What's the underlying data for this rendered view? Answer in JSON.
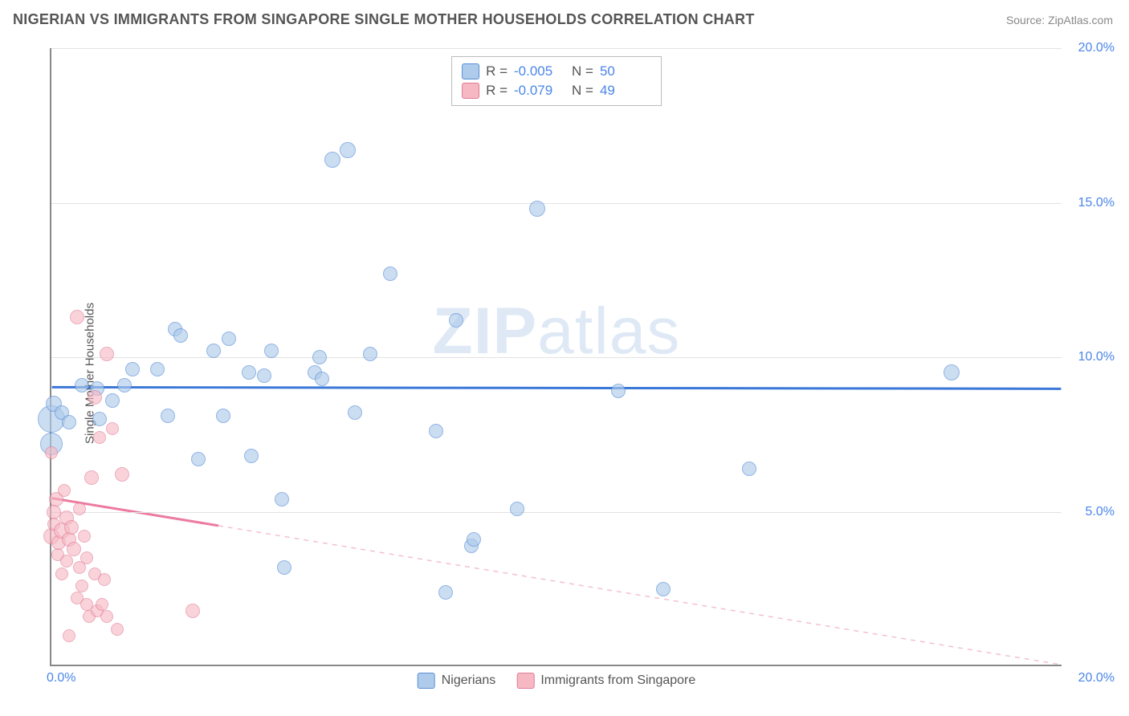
{
  "header": {
    "title": "NIGERIAN VS IMMIGRANTS FROM SINGAPORE SINGLE MOTHER HOUSEHOLDS CORRELATION CHART",
    "source": "Source: ZipAtlas.com"
  },
  "chart": {
    "type": "scatter",
    "ylabel": "Single Mother Households",
    "watermark": "ZIPatlas",
    "background_color": "#ffffff",
    "grid_color": "#e2e2e2",
    "axis_color": "#888888",
    "tick_label_color": "#4a86e8",
    "xlim": [
      0,
      20
    ],
    "ylim": [
      0,
      20
    ],
    "yticks": [
      5,
      10,
      15,
      20
    ],
    "ytick_labels": [
      "5.0%",
      "10.0%",
      "15.0%",
      "20.0%"
    ],
    "xticks_left": {
      "value": 0,
      "label": "0.0%"
    },
    "xticks_right": {
      "value": 20,
      "label": "20.0%"
    },
    "series": [
      {
        "name": "Nigerians",
        "fill_color": "#aecbeb",
        "fill_opacity": 0.65,
        "stroke_color": "#5a8fd6",
        "marker_size_default": 18,
        "trend": {
          "solid_color": "#3b78d8",
          "solid_width": 3,
          "solid_x_range": [
            0,
            20
          ],
          "y_at_x0": 9.0,
          "y_at_xmax": 8.95,
          "dashed": false
        },
        "R": "-0.005",
        "N": "50",
        "points": [
          {
            "x": 0.0,
            "y": 8.0,
            "size": 34
          },
          {
            "x": 0.0,
            "y": 7.2,
            "size": 28
          },
          {
            "x": 0.05,
            "y": 8.5,
            "size": 20
          },
          {
            "x": 0.2,
            "y": 8.2,
            "size": 18
          },
          {
            "x": 0.35,
            "y": 7.9,
            "size": 18
          },
          {
            "x": 0.6,
            "y": 9.1,
            "size": 18
          },
          {
            "x": 0.9,
            "y": 9.0,
            "size": 18
          },
          {
            "x": 0.95,
            "y": 8.0,
            "size": 18
          },
          {
            "x": 1.2,
            "y": 8.6,
            "size": 18
          },
          {
            "x": 1.45,
            "y": 9.1,
            "size": 18
          },
          {
            "x": 1.6,
            "y": 9.6,
            "size": 18
          },
          {
            "x": 2.1,
            "y": 9.6,
            "size": 18
          },
          {
            "x": 2.3,
            "y": 8.1,
            "size": 18
          },
          {
            "x": 2.45,
            "y": 10.9,
            "size": 18
          },
          {
            "x": 2.55,
            "y": 10.7,
            "size": 18
          },
          {
            "x": 2.9,
            "y": 6.7,
            "size": 18
          },
          {
            "x": 3.2,
            "y": 10.2,
            "size": 18
          },
          {
            "x": 3.4,
            "y": 8.1,
            "size": 18
          },
          {
            "x": 3.5,
            "y": 10.6,
            "size": 18
          },
          {
            "x": 3.9,
            "y": 9.5,
            "size": 18
          },
          {
            "x": 3.95,
            "y": 6.8,
            "size": 18
          },
          {
            "x": 4.2,
            "y": 9.4,
            "size": 18
          },
          {
            "x": 4.35,
            "y": 10.2,
            "size": 18
          },
          {
            "x": 4.55,
            "y": 5.4,
            "size": 18
          },
          {
            "x": 4.6,
            "y": 3.2,
            "size": 18
          },
          {
            "x": 5.2,
            "y": 9.5,
            "size": 18
          },
          {
            "x": 5.3,
            "y": 10.0,
            "size": 18
          },
          {
            "x": 5.35,
            "y": 9.3,
            "size": 18
          },
          {
            "x": 5.55,
            "y": 16.4,
            "size": 20
          },
          {
            "x": 5.85,
            "y": 16.7,
            "size": 20
          },
          {
            "x": 6.0,
            "y": 8.2,
            "size": 18
          },
          {
            "x": 6.3,
            "y": 10.1,
            "size": 18
          },
          {
            "x": 6.7,
            "y": 12.7,
            "size": 18
          },
          {
            "x": 7.6,
            "y": 7.6,
            "size": 18
          },
          {
            "x": 7.8,
            "y": 2.4,
            "size": 18
          },
          {
            "x": 8.0,
            "y": 11.2,
            "size": 18
          },
          {
            "x": 8.3,
            "y": 3.9,
            "size": 18
          },
          {
            "x": 8.35,
            "y": 4.1,
            "size": 18
          },
          {
            "x": 9.2,
            "y": 5.1,
            "size": 18
          },
          {
            "x": 9.6,
            "y": 14.8,
            "size": 20
          },
          {
            "x": 11.2,
            "y": 8.9,
            "size": 18
          },
          {
            "x": 12.1,
            "y": 2.5,
            "size": 18
          },
          {
            "x": 13.8,
            "y": 6.4,
            "size": 18
          },
          {
            "x": 17.8,
            "y": 9.5,
            "size": 20
          }
        ]
      },
      {
        "name": "Immigrants from Singapore",
        "fill_color": "#f6b9c3",
        "fill_opacity": 0.62,
        "stroke_color": "#e17a95",
        "marker_size_default": 18,
        "trend": {
          "solid_color": "#ec7ba0",
          "solid_width": 3,
          "solid_x_range": [
            0,
            3.3
          ],
          "dashed_color": "#f3c0cf",
          "dashed_x_range": [
            3.3,
            20
          ],
          "y_at_x0": 5.4,
          "y_at_xmax": 0.0,
          "dashed": true
        },
        "R": "-0.079",
        "N": "49",
        "points": [
          {
            "x": 0.0,
            "y": 6.9,
            "size": 16
          },
          {
            "x": 0.0,
            "y": 4.2,
            "size": 20
          },
          {
            "x": 0.05,
            "y": 5.0,
            "size": 18
          },
          {
            "x": 0.05,
            "y": 4.6,
            "size": 16
          },
          {
            "x": 0.1,
            "y": 5.4,
            "size": 18
          },
          {
            "x": 0.12,
            "y": 3.6,
            "size": 16
          },
          {
            "x": 0.15,
            "y": 4.0,
            "size": 18
          },
          {
            "x": 0.2,
            "y": 4.4,
            "size": 20
          },
          {
            "x": 0.2,
            "y": 3.0,
            "size": 16
          },
          {
            "x": 0.25,
            "y": 5.7,
            "size": 16
          },
          {
            "x": 0.3,
            "y": 4.8,
            "size": 18
          },
          {
            "x": 0.3,
            "y": 3.4,
            "size": 16
          },
          {
            "x": 0.35,
            "y": 4.1,
            "size": 18
          },
          {
            "x": 0.35,
            "y": 1.0,
            "size": 16
          },
          {
            "x": 0.4,
            "y": 4.5,
            "size": 18
          },
          {
            "x": 0.45,
            "y": 3.8,
            "size": 18
          },
          {
            "x": 0.5,
            "y": 2.2,
            "size": 16
          },
          {
            "x": 0.5,
            "y": 11.3,
            "size": 18
          },
          {
            "x": 0.55,
            "y": 5.1,
            "size": 16
          },
          {
            "x": 0.55,
            "y": 3.2,
            "size": 16
          },
          {
            "x": 0.6,
            "y": 2.6,
            "size": 16
          },
          {
            "x": 0.65,
            "y": 4.2,
            "size": 16
          },
          {
            "x": 0.7,
            "y": 3.5,
            "size": 16
          },
          {
            "x": 0.7,
            "y": 2.0,
            "size": 16
          },
          {
            "x": 0.75,
            "y": 1.6,
            "size": 16
          },
          {
            "x": 0.8,
            "y": 6.1,
            "size": 18
          },
          {
            "x": 0.85,
            "y": 8.7,
            "size": 18
          },
          {
            "x": 0.85,
            "y": 3.0,
            "size": 16
          },
          {
            "x": 0.9,
            "y": 1.8,
            "size": 16
          },
          {
            "x": 0.95,
            "y": 7.4,
            "size": 16
          },
          {
            "x": 1.0,
            "y": 2.0,
            "size": 16
          },
          {
            "x": 1.05,
            "y": 2.8,
            "size": 16
          },
          {
            "x": 1.1,
            "y": 10.1,
            "size": 18
          },
          {
            "x": 1.1,
            "y": 1.6,
            "size": 16
          },
          {
            "x": 1.2,
            "y": 7.7,
            "size": 16
          },
          {
            "x": 1.3,
            "y": 1.2,
            "size": 16
          },
          {
            "x": 1.4,
            "y": 6.2,
            "size": 18
          },
          {
            "x": 2.8,
            "y": 1.8,
            "size": 18
          }
        ]
      }
    ],
    "stats_box": {
      "rows": [
        {
          "swatch_fill": "#aecbeb",
          "swatch_stroke": "#5a8fd6",
          "r_label": "R =",
          "r_val": "-0.005",
          "n_label": "N =",
          "n_val": "50"
        },
        {
          "swatch_fill": "#f6b9c3",
          "swatch_stroke": "#e17a95",
          "r_label": "R =",
          "r_val": "-0.079",
          "n_label": "N =",
          "n_val": "49"
        }
      ]
    },
    "bottom_legend": [
      {
        "swatch_fill": "#aecbeb",
        "swatch_stroke": "#5a8fd6",
        "label": "Nigerians"
      },
      {
        "swatch_fill": "#f6b9c3",
        "swatch_stroke": "#e17a95",
        "label": "Immigrants from Singapore"
      }
    ]
  }
}
